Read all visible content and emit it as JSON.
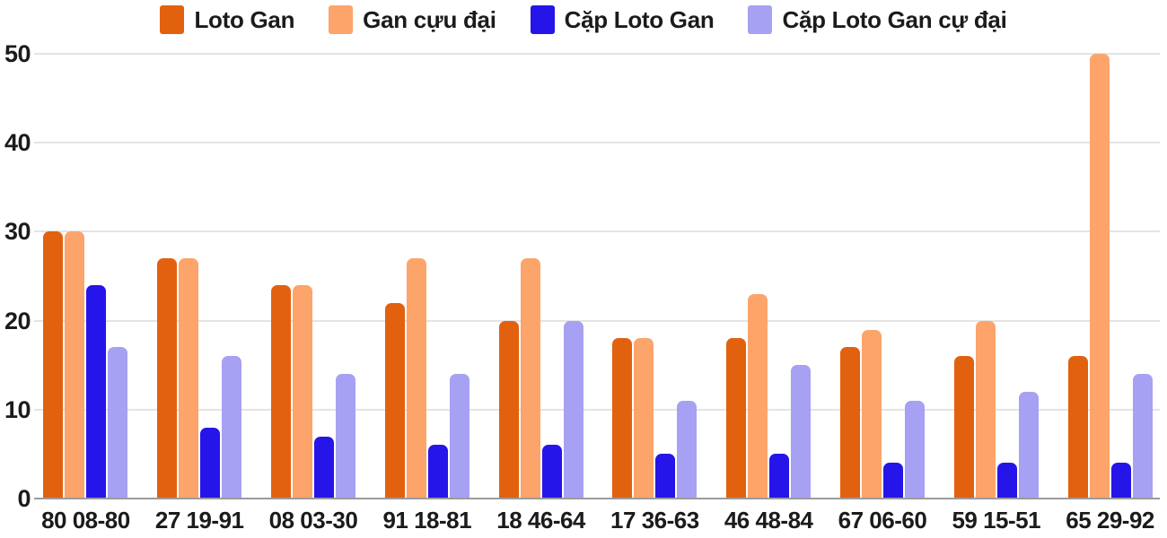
{
  "chart_data": {
    "type": "bar",
    "title": "",
    "xlabel": "",
    "ylabel": "",
    "categories": [
      "80 08-80",
      "27 19-91",
      "08 03-30",
      "91 18-81",
      "18 46-64",
      "17 36-63",
      "46 48-84",
      "67 06-60",
      "59 15-51",
      "65 29-92"
    ],
    "series": [
      {
        "name": "Loto Gan",
        "color": "#e2610f",
        "values": [
          30,
          27,
          24,
          22,
          20,
          18,
          18,
          17,
          16,
          16
        ]
      },
      {
        "name": "Gan cựu đại",
        "color": "#fda46a",
        "values": [
          30,
          27,
          24,
          27,
          27,
          18,
          23,
          19,
          20,
          50
        ]
      },
      {
        "name": "Cặp Loto Gan",
        "color": "#2615e8",
        "values": [
          24,
          8,
          7,
          6,
          6,
          5,
          5,
          4,
          4,
          4
        ]
      },
      {
        "name": "Cặp Loto Gan cự đại",
        "color": "#a6a1f3",
        "values": [
          17,
          16,
          14,
          14,
          20,
          11,
          15,
          11,
          12,
          14
        ]
      }
    ],
    "ylim": [
      0,
      50
    ],
    "yticks": [
      0,
      10,
      20,
      30,
      40,
      50
    ],
    "grid": true,
    "legend_position": "top",
    "colors": {
      "gridline": "#e4e4e4",
      "axis_line": "#9b9b9b",
      "text": "#1b1b1b",
      "background": "#ffffff"
    }
  }
}
